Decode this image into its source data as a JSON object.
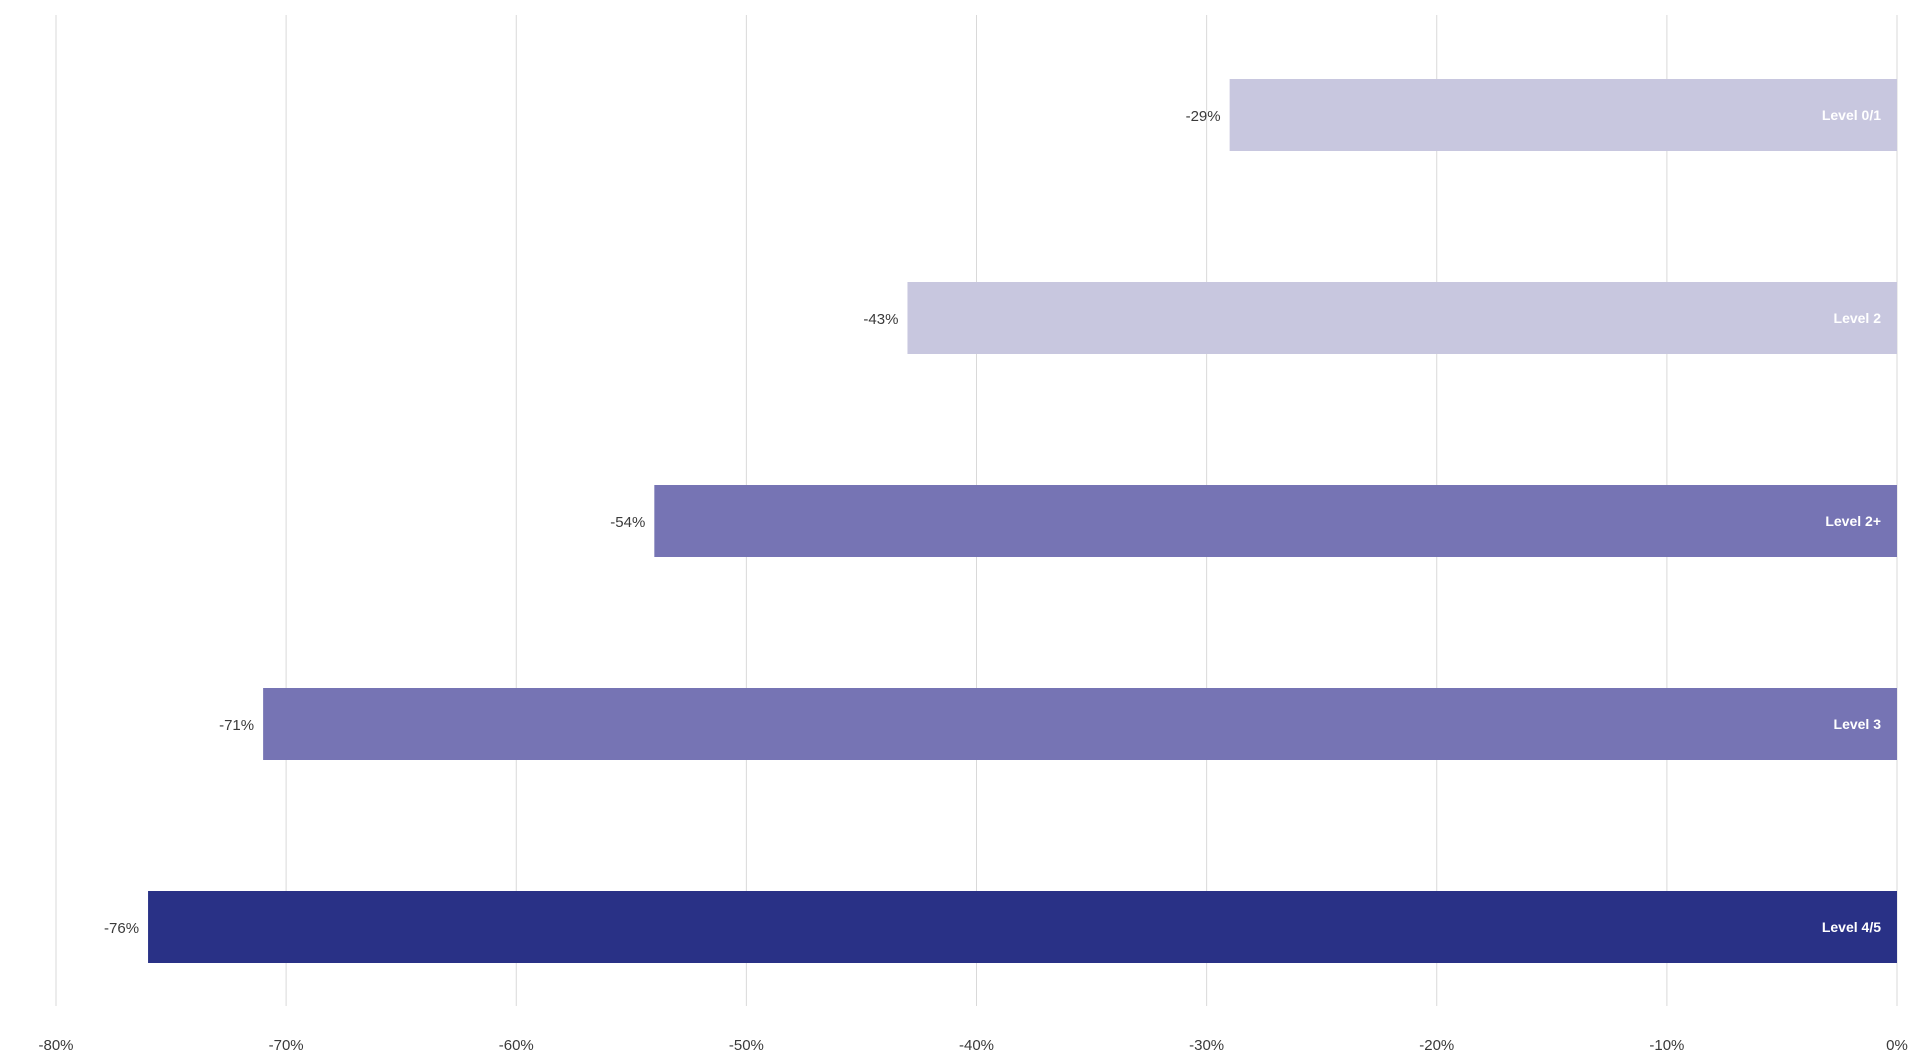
{
  "chart_data": {
    "type": "bar",
    "orientation": "horizontal",
    "categories": [
      "Level 0/1",
      "Level 2",
      "Level 2+",
      "Level 3",
      "Level 4/5"
    ],
    "values": [
      -29,
      -43,
      -54,
      -71,
      -76
    ],
    "data_labels": [
      "-29%",
      "-43%",
      "-54%",
      "-71%",
      "-76%"
    ],
    "bar_colors": [
      "#c8c7df",
      "#c8c7df",
      "#7674b4",
      "#7674b4",
      "#293186"
    ],
    "xlim": [
      -80,
      0
    ],
    "x_ticks": [
      -80,
      -70,
      -60,
      -50,
      -40,
      -30,
      -20,
      -10,
      0
    ],
    "x_tick_labels": [
      "-80%",
      "-70%",
      "-60%",
      "-50%",
      "-40%",
      "-30%",
      "-20%",
      "-10%",
      "0%"
    ],
    "grid": true,
    "title": "",
    "xlabel": "",
    "ylabel": ""
  }
}
